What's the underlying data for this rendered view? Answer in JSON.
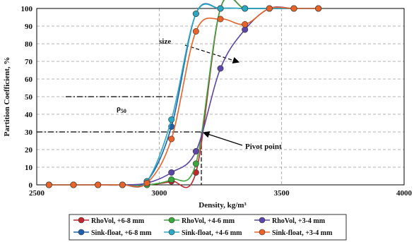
{
  "chart_data": {
    "type": "line",
    "xlabel": "Density, kg/m³",
    "ylabel": "Partition Coefficient, %",
    "xlim": [
      2500,
      4000
    ],
    "ylim": [
      0,
      100
    ],
    "x_ticks": [
      2500,
      3000,
      3500,
      4000
    ],
    "y_ticks": [
      0,
      10,
      20,
      30,
      40,
      50,
      60,
      70,
      80,
      90,
      100
    ],
    "grid": "dashed",
    "legend_position": "bottom",
    "series": [
      {
        "name": "RhoVol, +6-8 mm",
        "color": "#c0272d",
        "x": [
          2550,
          2650,
          2750,
          2850,
          2950,
          3050,
          3150,
          3250,
          3350,
          3450,
          3550,
          3650
        ],
        "y": [
          0,
          0,
          0,
          0,
          0,
          2,
          7,
          100,
          100,
          100,
          100,
          100
        ]
      },
      {
        "name": "RhoVol, +4-6 mm",
        "color": "#3aa63c",
        "x": [
          2550,
          2650,
          2750,
          2850,
          2950,
          3050,
          3150,
          3250,
          3350,
          3450,
          3550,
          3650
        ],
        "y": [
          0,
          0,
          0,
          0,
          0,
          3,
          12,
          100,
          100,
          100,
          100,
          100
        ]
      },
      {
        "name": "RhoVol, +3-4 mm",
        "color": "#5b45a6",
        "x": [
          2550,
          2650,
          2750,
          2850,
          2950,
          3050,
          3150,
          3250,
          3350,
          3450,
          3550,
          3650
        ],
        "y": [
          0,
          0,
          0,
          0,
          1,
          7,
          19,
          66,
          88,
          100,
          100,
          100
        ]
      },
      {
        "name": "Sink-float, +6-8 mm",
        "color": "#1f5fa8",
        "x": [
          2550,
          2650,
          2750,
          2850,
          2950,
          3050,
          3150,
          3250,
          3350,
          3450,
          3550,
          3650
        ],
        "y": [
          0,
          0,
          0,
          0,
          2,
          33,
          97,
          100,
          100,
          100,
          100,
          100
        ]
      },
      {
        "name": "Sink-float, +4-6 mm",
        "color": "#2aa8c4",
        "x": [
          2550,
          2650,
          2750,
          2850,
          2950,
          3050,
          3150,
          3250,
          3350,
          3450,
          3550,
          3650
        ],
        "y": [
          0,
          0,
          0,
          0,
          2,
          37,
          97,
          100,
          100,
          100,
          100,
          100
        ]
      },
      {
        "name": "Sink-float, +3-4 mm",
        "color": "#e8632a",
        "x": [
          2550,
          2650,
          2750,
          2850,
          2950,
          3050,
          3150,
          3250,
          3350,
          3450,
          3550,
          3650
        ],
        "y": [
          0,
          0,
          0,
          0,
          1,
          26,
          87,
          94,
          91,
          100,
          100,
          100
        ]
      }
    ],
    "annotations": {
      "size": "size",
      "rho50_main": "ρ",
      "rho50_sub": "50",
      "pivot": "Pivot point"
    }
  }
}
